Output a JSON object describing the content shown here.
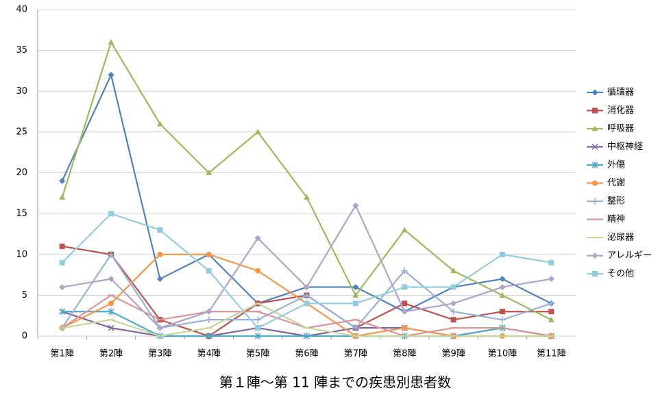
{
  "chart_data": {
    "type": "line",
    "title": "第１陣～第 11 陣までの疾患別患者数",
    "categories": [
      "第1陣",
      "第2陣",
      "第3陣",
      "第4陣",
      "第5陣",
      "第6陣",
      "第7陣",
      "第8陣",
      "第9陣",
      "第10陣",
      "第11陣"
    ],
    "ylim": [
      0,
      40
    ],
    "yticks": [
      0,
      5,
      10,
      15,
      20,
      25,
      30,
      35,
      40
    ],
    "grid": true,
    "legend": "right",
    "series": [
      {
        "name": "循環器",
        "color": "#4f81bd",
        "marker": "diamond",
        "values": [
          19,
          32,
          7,
          10,
          4,
          6,
          6,
          3,
          6,
          7,
          4
        ]
      },
      {
        "name": "消化器",
        "color": "#c0504d",
        "marker": "square",
        "values": [
          11,
          10,
          2,
          0,
          4,
          5,
          1,
          4,
          2,
          3,
          3
        ]
      },
      {
        "name": "呼吸器",
        "color": "#9bbb59",
        "marker": "triangle",
        "values": [
          17,
          36,
          26,
          20,
          25,
          17,
          5,
          13,
          8,
          5,
          2
        ]
      },
      {
        "name": "中枢神経",
        "color": "#8064a2",
        "marker": "x",
        "values": [
          3,
          1,
          0,
          0,
          1,
          0,
          1,
          1,
          0,
          1,
          0
        ]
      },
      {
        "name": "外傷",
        "color": "#4bacc6",
        "marker": "star",
        "values": [
          3,
          3,
          0,
          0,
          0,
          0,
          0,
          0,
          0,
          1,
          0
        ]
      },
      {
        "name": "代謝",
        "color": "#f79646",
        "marker": "circle",
        "values": [
          1,
          4,
          10,
          10,
          8,
          4,
          0,
          1,
          0,
          0,
          0
        ]
      },
      {
        "name": "整形",
        "color": "#95b3d7",
        "marker": "plus",
        "values": [
          1,
          10,
          1,
          2,
          2,
          5,
          1,
          8,
          3,
          2,
          4
        ]
      },
      {
        "name": "精神",
        "color": "#d99694",
        "marker": "dash",
        "values": [
          1,
          5,
          2,
          3,
          3,
          1,
          2,
          0,
          1,
          1,
          0
        ]
      },
      {
        "name": "泌尿器",
        "color": "#c3d69b",
        "marker": "dash",
        "values": [
          1,
          2,
          0,
          1,
          4,
          1,
          0,
          0,
          0,
          0,
          0
        ]
      },
      {
        "name": "アレルギー",
        "color": "#b3a2c7",
        "marker": "diamond",
        "values": [
          6,
          7,
          1,
          3,
          12,
          6,
          16,
          3,
          4,
          6,
          7
        ]
      },
      {
        "name": "その他",
        "color": "#93cddd",
        "marker": "square",
        "values": [
          9,
          15,
          13,
          8,
          1,
          4,
          4,
          6,
          6,
          10,
          9
        ]
      }
    ]
  }
}
